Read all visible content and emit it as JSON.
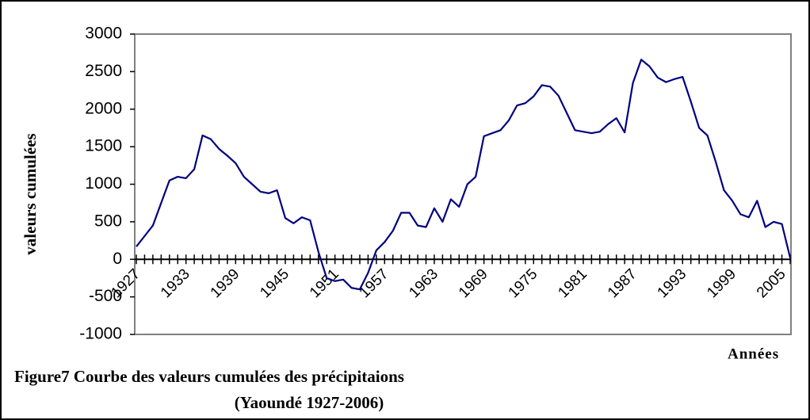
{
  "chart_data": {
    "type": "line",
    "title": "Figure7 Courbe des valeurs cumulées des précipitaions",
    "subtitle": "(Yaoundé 1927-2006)",
    "y_label": "valeurs cumulées",
    "x_label": "Années",
    "categories": [
      "1927",
      null,
      null,
      null,
      null,
      null,
      "1933",
      null,
      null,
      null,
      null,
      null,
      "1939",
      null,
      null,
      null,
      null,
      null,
      "1945",
      null,
      null,
      null,
      null,
      null,
      "1951",
      null,
      null,
      null,
      null,
      null,
      "1957",
      null,
      null,
      null,
      null,
      null,
      "1963",
      null,
      null,
      null,
      null,
      null,
      "1969",
      null,
      null,
      null,
      null,
      null,
      "1975",
      null,
      null,
      null,
      null,
      null,
      "1981",
      null,
      null,
      null,
      null,
      null,
      "1987",
      null,
      null,
      null,
      null,
      null,
      "1993",
      null,
      null,
      null,
      null,
      null,
      "1999",
      null,
      null,
      null,
      null,
      null,
      "2005",
      null
    ],
    "values": [
      170,
      310,
      450,
      750,
      1050,
      1100,
      1080,
      1200,
      1650,
      1600,
      1470,
      1380,
      1280,
      1100,
      1000,
      900,
      880,
      920,
      550,
      480,
      560,
      520,
      100,
      -250,
      -290,
      -270,
      -380,
      -400,
      -180,
      120,
      230,
      380,
      620,
      620,
      450,
      430,
      680,
      500,
      800,
      700,
      1000,
      1100,
      1640,
      1680,
      1720,
      1850,
      2050,
      2080,
      2170,
      2320,
      2300,
      2180,
      1950,
      1720,
      1700,
      1680,
      1700,
      1800,
      1880,
      1690,
      2350,
      2660,
      2570,
      2420,
      2360,
      2400,
      2430,
      2100,
      1750,
      1650,
      1300,
      920,
      780,
      600,
      560,
      780,
      430,
      500,
      470,
      20
    ],
    "color": "#000080",
    "ylim": [
      -1000,
      3000
    ],
    "yticks": [
      -1000,
      -500,
      0,
      500,
      1000,
      1500,
      2000,
      2500,
      3000
    ],
    "grid": false
  }
}
